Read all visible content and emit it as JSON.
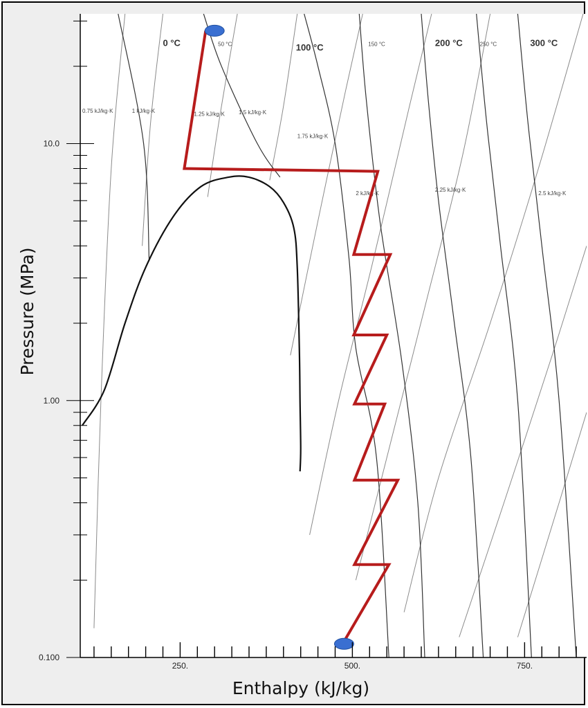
{
  "chart_data": {
    "type": "line",
    "title": "",
    "xlabel": "Enthalpy (kJ/kg)",
    "ylabel": "Pressure (MPa)",
    "xlim": [
      105,
      840
    ],
    "ylim": [
      0.1,
      32
    ],
    "y_scale": "log",
    "x_ticks": [
      {
        "value": 250,
        "label": "250."
      },
      {
        "value": 500,
        "label": "500."
      },
      {
        "value": 750,
        "label": "750."
      }
    ],
    "y_ticks": [
      {
        "value": 0.1,
        "label": "0.100"
      },
      {
        "value": 1,
        "label": "1.00"
      },
      {
        "value": 10,
        "label": "10.0"
      }
    ],
    "isotherms": [
      {
        "label": "0 °C",
        "style": "big",
        "label_at": [
          225,
          24
        ],
        "points": [
          [
            160,
            32
          ],
          [
            197,
            10
          ],
          [
            205,
            3.5
          ]
        ]
      },
      {
        "label": "50 °C",
        "style": "small",
        "label_at": [
          305,
          24
        ],
        "points": [
          [
            284,
            32
          ],
          [
            310,
            20
          ],
          [
            362,
            10
          ],
          [
            395,
            7.4
          ]
        ]
      },
      {
        "label": "100 °C",
        "style": "big",
        "label_at": [
          418,
          23
        ],
        "points": [
          [
            430,
            32
          ],
          [
            450,
            20
          ],
          [
            475,
            10
          ],
          [
            495,
            3.6
          ],
          [
            505,
            1.6
          ],
          [
            535,
            0.6
          ],
          [
            553,
            0.1
          ]
        ]
      },
      {
        "label": "150 °C",
        "style": "small",
        "label_at": [
          523,
          24
        ],
        "points": [
          [
            510,
            32
          ],
          [
            520,
            15
          ],
          [
            540,
            5
          ],
          [
            572,
            1.4
          ],
          [
            595,
            0.4
          ],
          [
            605,
            0.1
          ]
        ]
      },
      {
        "label": "200 °C",
        "style": "big",
        "label_at": [
          620,
          24
        ],
        "points": [
          [
            600,
            32
          ],
          [
            610,
            15
          ],
          [
            625,
            6
          ],
          [
            648,
            2
          ],
          [
            672,
            0.6
          ],
          [
            690,
            0.1
          ]
        ]
      },
      {
        "label": "250 °C",
        "style": "small",
        "label_at": [
          685,
          24
        ],
        "points": [
          [
            680,
            32
          ],
          [
            695,
            12
          ],
          [
            715,
            4
          ],
          [
            740,
            1
          ],
          [
            760,
            0.1
          ]
        ]
      },
      {
        "label": "300 °C",
        "style": "big",
        "label_at": [
          758,
          24
        ],
        "points": [
          [
            740,
            32
          ],
          [
            755,
            12
          ],
          [
            775,
            4
          ],
          [
            800,
            1
          ],
          [
            825,
            0.1
          ]
        ]
      }
    ],
    "isentropes": [
      {
        "label": "0.75 kJ/kg·K",
        "label_at": [
          108,
          13.2
        ],
        "points": [
          [
            125,
            0.13
          ],
          [
            135,
            1
          ],
          [
            150,
            8
          ],
          [
            170,
            32
          ]
        ]
      },
      {
        "label": "1 kJ/kg·K",
        "label_at": [
          180,
          13.2
        ],
        "points": [
          [
            195,
            4
          ],
          [
            207,
            12
          ],
          [
            225,
            32
          ]
        ]
      },
      {
        "label": "1.25 kJ/kg·K",
        "label_at": [
          270,
          12.8
        ],
        "points": [
          [
            290,
            6.2
          ],
          [
            308,
            13
          ],
          [
            333,
            32
          ]
        ]
      },
      {
        "label": "1.5 kJ/kg·K",
        "label_at": [
          335,
          13
        ],
        "points": [
          [
            380,
            7.2
          ],
          [
            400,
            14
          ],
          [
            420,
            32
          ]
        ]
      },
      {
        "label": "1.75 kJ/kg·K",
        "label_at": [
          420,
          10.5
        ],
        "points": [
          [
            410,
            1.5
          ],
          [
            450,
            5
          ],
          [
            490,
            16
          ],
          [
            515,
            32
          ]
        ]
      },
      {
        "label": "2 kJ/kg·K",
        "label_at": [
          505,
          6.3
        ],
        "points": [
          [
            438,
            0.3
          ],
          [
            480,
            1
          ],
          [
            530,
            3.5
          ],
          [
            580,
            13
          ],
          [
            615,
            32
          ]
        ]
      },
      {
        "label": "2.25 kJ/kg·K",
        "label_at": [
          620,
          6.5
        ],
        "points": [
          [
            505,
            0.2
          ],
          [
            550,
            0.6
          ],
          [
            605,
            2.3
          ],
          [
            660,
            9
          ],
          [
            700,
            32
          ]
        ]
      },
      {
        "label": "2.5 kJ/kg·K",
        "label_at": [
          770,
          6.3
        ],
        "points": [
          [
            575,
            0.15
          ],
          [
            625,
            0.5
          ],
          [
            700,
            2
          ],
          [
            770,
            8
          ],
          [
            835,
            32
          ]
        ]
      },
      {
        "label": "",
        "label_at": null,
        "points": [
          [
            655,
            0.12
          ],
          [
            720,
            0.4
          ],
          [
            790,
            1.5
          ],
          [
            840,
            4
          ]
        ]
      },
      {
        "label": "",
        "label_at": null,
        "points": [
          [
            740,
            0.12
          ],
          [
            800,
            0.4
          ],
          [
            840,
            0.9
          ]
        ]
      }
    ],
    "saturation_dome": [
      [
        108,
        0.8
      ],
      [
        140,
        1.1
      ],
      [
        170,
        2.0
      ],
      [
        200,
        3.3
      ],
      [
        240,
        5.2
      ],
      [
        280,
        6.8
      ],
      [
        320,
        7.4
      ],
      [
        350,
        7.4
      ],
      [
        380,
        6.8
      ],
      [
        400,
        5.9
      ],
      [
        415,
        4.7
      ],
      [
        420,
        3.3
      ],
      [
        423,
        1.6
      ],
      [
        424,
        1.0
      ],
      [
        425,
        0.65
      ],
      [
        424,
        0.53
      ]
    ],
    "process_path": [
      [
        287,
        27.5
      ],
      [
        256,
        8.0
      ],
      [
        537,
        7.8
      ],
      [
        502,
        3.7
      ],
      [
        555,
        3.7
      ],
      [
        502,
        1.8
      ],
      [
        550,
        1.8
      ],
      [
        503,
        0.97
      ],
      [
        547,
        0.97
      ],
      [
        503,
        0.49
      ],
      [
        566,
        0.49
      ],
      [
        503,
        0.23
      ],
      [
        553,
        0.23
      ],
      [
        490,
        0.118
      ]
    ],
    "endpoints": [
      [
        300,
        27.5
      ],
      [
        488,
        0.113
      ]
    ],
    "colors": {
      "process": "#b71c1c",
      "endpoint": "#3a6fd1",
      "endpoint_stroke": "#1f4f9f",
      "dome": "#111111",
      "isotherm": "#333333",
      "isentrope": "#8a8a8a"
    }
  }
}
